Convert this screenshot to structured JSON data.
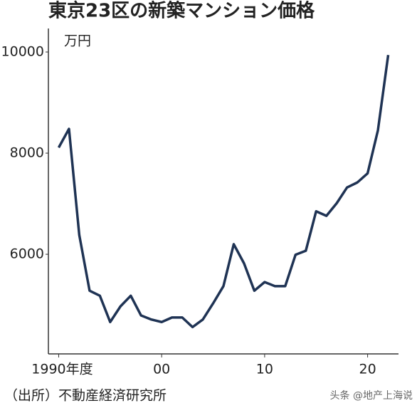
{
  "chart_data": {
    "type": "line",
    "title": "東京23区の新築マンション価格",
    "y_unit": "万円",
    "source": "（出所）不動産経済研究所",
    "watermark": "头条 @地产上海说",
    "x": [
      1990,
      1991,
      1992,
      1993,
      1994,
      1995,
      1996,
      1997,
      1998,
      1999,
      2000,
      2001,
      2002,
      2003,
      2004,
      2005,
      2006,
      2007,
      2008,
      2009,
      2010,
      2011,
      2012,
      2013,
      2014,
      2015,
      2016,
      2017,
      2018,
      2019,
      2020,
      2021,
      2022
    ],
    "series": [
      {
        "name": "東京23区",
        "color": "#1f3354",
        "values": [
          8110,
          8480,
          6380,
          5280,
          5180,
          4660,
          4970,
          5180,
          4790,
          4710,
          4660,
          4750,
          4750,
          4560,
          4710,
          5030,
          5370,
          6200,
          5820,
          5280,
          5450,
          5370,
          5370,
          5990,
          6070,
          6850,
          6760,
          7010,
          7320,
          7420,
          7600,
          8450,
          9940
        ]
      }
    ],
    "xlim": [
      1989,
      2023
    ],
    "xticks": [
      {
        "value": 1990,
        "label": "1990年度"
      },
      {
        "value": 2000,
        "label": "00"
      },
      {
        "value": 2010,
        "label": "10"
      },
      {
        "value": 2020,
        "label": "20"
      }
    ],
    "ylim": [
      4030,
      10465
    ],
    "yticks": [
      6000,
      8000,
      10000
    ],
    "grid": false
  }
}
